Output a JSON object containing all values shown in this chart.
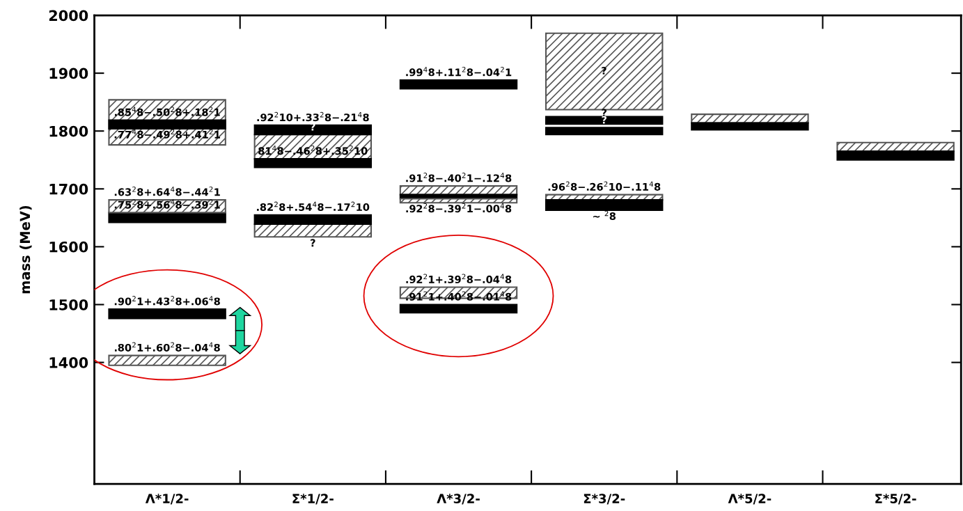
{
  "chart_data": {
    "type": "bar",
    "ylabel": "mass (MeV)",
    "categories": [
      "Λ*1/2-",
      "Σ*1/2-",
      "Λ*3/2-",
      "Σ*3/2-",
      "Λ*5/2-",
      "Σ*5/2-"
    ],
    "series": [
      {
        "color": "#555555",
        "base": [
          1776,
          1752,
          1690,
          1837,
          1814,
          1765
        ],
        "values": [
          78,
          42,
          15,
          132,
          15,
          15
        ]
      },
      {
        "color": "#000000",
        "base": [
          1804,
          1794,
          1683,
          1812,
          1802,
          1750
        ],
        "values": [
          15,
          16,
          7,
          13,
          12,
          15
        ]
      },
      {
        "color": "#000000",
        "base": [
          1642,
          1737,
          1873,
          1794,
          null,
          null
        ],
        "values": [
          17,
          15,
          15,
          12,
          null,
          null
        ]
      },
      {
        "color": "#555555",
        "base": [
          1659,
          1617,
          1676,
          1681,
          null,
          null
        ],
        "values": [
          22,
          22,
          7,
          9,
          null,
          null
        ]
      },
      {
        "color": "#000000",
        "base": [
          1476,
          1639,
          1486,
          1663,
          null,
          null
        ],
        "values": [
          16,
          16,
          14,
          18,
          null,
          null
        ]
      },
      {
        "color": "#555555",
        "base": [
          1395,
          null,
          1511,
          null,
          null,
          null
        ],
        "values": [
          17,
          null,
          19,
          null,
          null,
          null
        ]
      }
    ],
    "ylim": [
      1190,
      2000
    ],
    "yticks": [
      1400,
      1500,
      1600,
      1700,
      1800,
      1900,
      2000
    ],
    "grid": false,
    "annotations": [
      {
        "text": ".85$^{4}$8−.50$^{2}$8+.18$^{2}$1",
        "x": "Λ*1/2-",
        "y": 1819
      },
      {
        "text": ".77$^{4}$8−.49$^{2}$8+.41$^{2}$1",
        "x": "Λ*1/2-",
        "y": 1804
      },
      {
        "text": ".63$^{2}$8+.64$^{4}$8−.44$^{2}$1",
        "x": "Λ*1/2-",
        "y": 1681
      },
      {
        "text": ".75$^{2}$8+.56$^{4}$8−.39$^{2}$1",
        "x": "Λ*1/2-",
        "y": 1659
      },
      {
        "text": ".90$^{2}$1+.43$^{2}$8+.06$^{4}$8",
        "x": "Λ*1/2-",
        "y": 1492
      },
      {
        "text": ".80$^{2}$1+.60$^{2}$8−.04$^{4}$8",
        "x": "Λ*1/2-",
        "y": 1412
      },
      {
        "text": ".92$^{2}$10+.33$^{2}$8−.21$^{4}$8",
        "x": "Σ*1/2-",
        "y": 1810
      },
      {
        "text": "?",
        "x": "Σ*1/2-",
        "y": 1794
      },
      {
        "text": "81$^{4}$8−.46$^{2}$8+.35$^{2}$10",
        "x": "Σ*1/2-",
        "y": 1752
      },
      {
        "text": ".82$^{2}$8+.54$^{4}$8−.17$^{2}$10",
        "x": "Σ*1/2-",
        "y": 1655
      },
      {
        "text": "?",
        "x": "Σ*1/2-",
        "y": 1617
      },
      {
        "text": ".99$^{4}$8+.11$^{2}$8−.04$^{2}$1",
        "x": "Λ*3/2-",
        "y": 1888
      },
      {
        "text": ".91$^{2}$8−.40$^{2}$1−.12$^{4}$8",
        "x": "Λ*3/2-",
        "y": 1705
      },
      {
        "text": ".92$^{2}$8−.39$^{2}$1−.00$^{4}$8",
        "x": "Λ*3/2-",
        "y": 1676
      },
      {
        "text": ".92$^{2}$1+.39$^{2}$8−.04$^{4}$8",
        "x": "Λ*3/2-",
        "y": 1530
      },
      {
        "text": ".91$^{2}$1+.40$^{2}$8−.01$^{4}$8",
        "x": "Λ*3/2-",
        "y": 1500
      },
      "?",
      {
        "text": "?",
        "x": "Σ*3/2-",
        "y": 1830
      },
      {
        "text": "?",
        "x": "Σ*3/2-",
        "y": 1806
      },
      {
        "text": ".96$^{2}$8−.26$^{2}$10−.11$^{4}$8",
        "x": "Σ*3/2-",
        "y": 1690
      },
      {
        "text": "~ $^{2}$8",
        "x": "Σ*3/2-",
        "y": 1663
      }
    ]
  }
}
